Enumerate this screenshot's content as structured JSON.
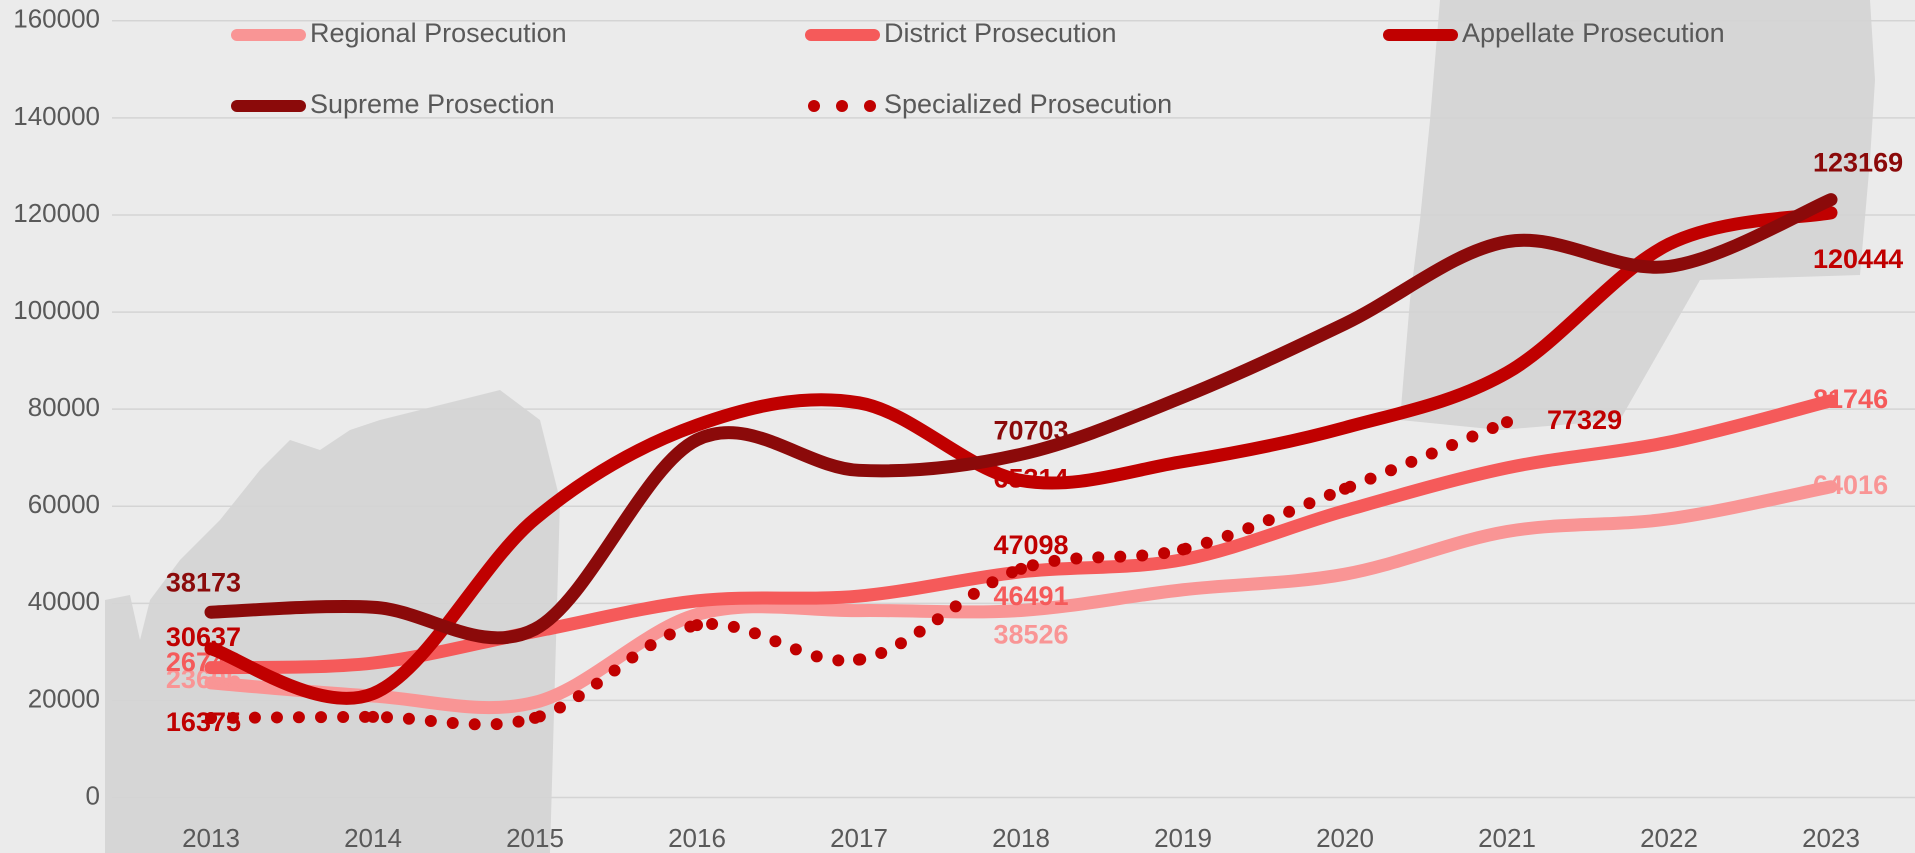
{
  "chart_data": {
    "type": "line",
    "categories": [
      "2013",
      "2014",
      "2015",
      "2016",
      "2017",
      "2018",
      "2019",
      "2020",
      "2021",
      "2022",
      "2023"
    ],
    "series": [
      {
        "name": "Regional Prosecution",
        "color": "#f99595",
        "values": [
          23605,
          20900,
          19600,
          37700,
          38500,
          38526,
          42800,
          46000,
          54800,
          57400,
          64016
        ]
      },
      {
        "name": "District Prosecution",
        "color": "#f55a5a",
        "values": [
          26743,
          27700,
          34200,
          40500,
          41500,
          46491,
          49000,
          59100,
          67900,
          73200,
          81746
        ]
      },
      {
        "name": "Appellate Prosecution",
        "color": "#c00000",
        "values": [
          30637,
          21400,
          57400,
          76700,
          81300,
          65314,
          69200,
          76200,
          87500,
          114000,
          120444
        ]
      },
      {
        "name": "Supreme Prosection",
        "color": "#8b0a0a",
        "values": [
          38173,
          39200,
          34700,
          73700,
          67400,
          70703,
          82500,
          97600,
          114500,
          109400,
          123169
        ]
      },
      {
        "name": "Specialized Prosecution",
        "color": "#c00000",
        "dotted": true,
        "values": [
          16375,
          16600,
          16400,
          35500,
          28400,
          47098,
          51100,
          63600,
          77329,
          null,
          null
        ]
      }
    ],
    "ylim": [
      0,
      160000
    ],
    "yticks": [
      0,
      20000,
      40000,
      60000,
      80000,
      100000,
      120000,
      140000,
      160000
    ],
    "grid": true
  }
}
